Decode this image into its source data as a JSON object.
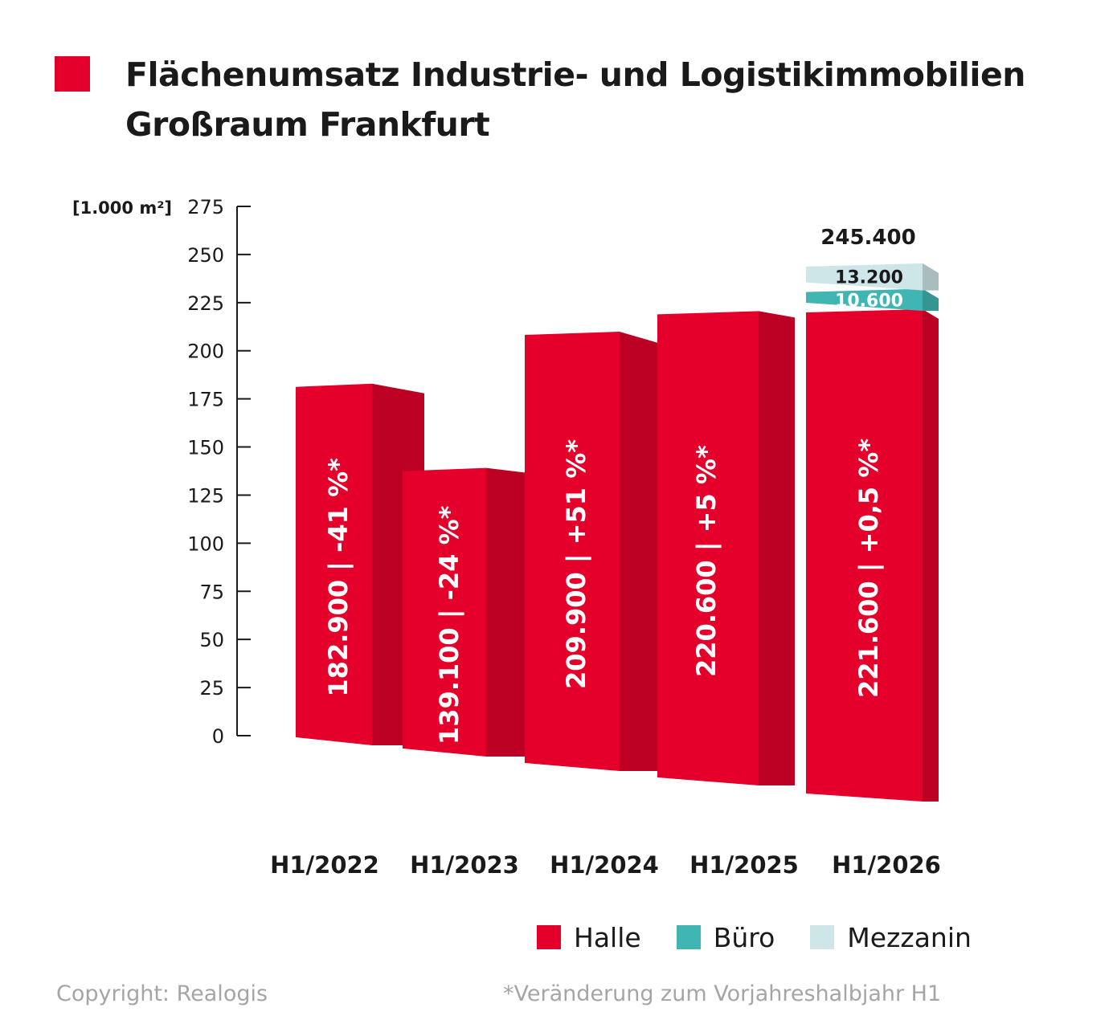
{
  "title": {
    "line1": "Flächenumsatz Industrie- und Logistikimmobilien",
    "line2": "Großraum Frankfurt"
  },
  "colors": {
    "halle": "#e4002b",
    "buero": "#3fb6b3",
    "mezzanin": "#cfe6e8",
    "axis": "#1a1a1a"
  },
  "chart_data": {
    "type": "bar",
    "stacked": true,
    "unit_label": "[1.000 m²]",
    "ylim": [
      0,
      275
    ],
    "yticks": [
      "0",
      "25",
      "50",
      "75",
      "100",
      "125",
      "150",
      "175",
      "200",
      "225",
      "250",
      "275"
    ],
    "categories": [
      "H1/2022",
      "H1/2023",
      "H1/2024",
      "H1/2025",
      "H1/2026"
    ],
    "series": [
      {
        "name": "Halle",
        "values": [
          182.9,
          139.1,
          209.9,
          220.6,
          221.6
        ]
      },
      {
        "name": "Büro",
        "values": [
          0,
          0,
          0,
          0,
          10.6
        ]
      },
      {
        "name": "Mezzanin",
        "values": [
          0,
          0,
          0,
          0,
          13.2
        ]
      }
    ],
    "bar_labels": [
      "182.900 | -41 %*",
      "139.100 | -24 %*",
      "209.900 | +51 %*",
      "220.600  | +5 %*",
      "221.600 | +0,5 %*"
    ],
    "segment_labels": {
      "buero": "10.600",
      "mezzanin": "13.200"
    },
    "total_label": "245.400",
    "legend": [
      "Halle",
      "Büro",
      "Mezzanin"
    ],
    "legend_position": "bottom-right",
    "grid": false
  },
  "footer": {
    "copyright": "Copyright: Realogis",
    "note": "*Veränderung zum Vorjahreshalbjahr H1"
  }
}
